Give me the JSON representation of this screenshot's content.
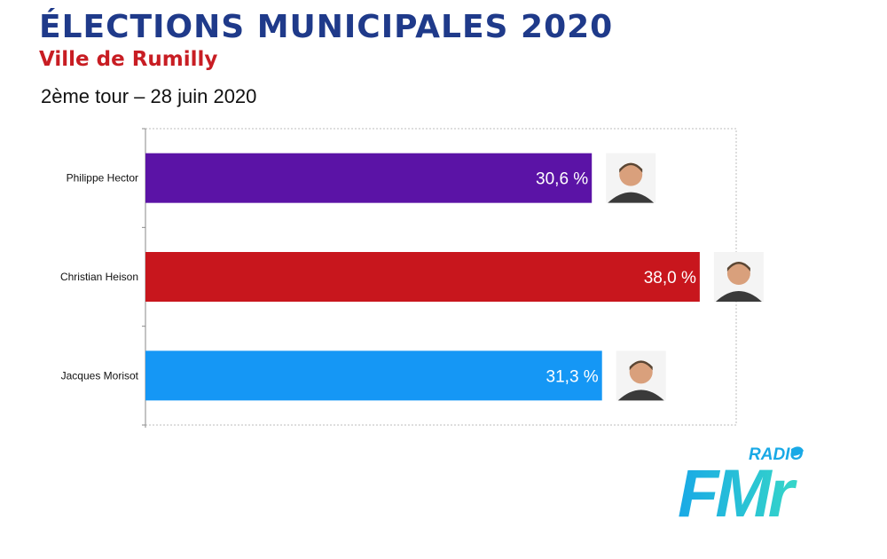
{
  "header": {
    "title": "ÉLECTIONS MUNICIPALES 2020",
    "subtitle": "Ville de Rumilly",
    "round": "2ème tour – 28 juin 2020"
  },
  "chart_data": {
    "type": "bar",
    "orientation": "horizontal",
    "categories": [
      "Philippe Hector",
      "Christian Heison",
      "Jacques Morisot"
    ],
    "values": [
      30.6,
      38.0,
      31.3
    ],
    "value_labels": [
      "30,6 %",
      "38,0 %",
      "31,3 %"
    ],
    "colors": [
      "#5b13a6",
      "#c8161d",
      "#1597f5"
    ],
    "title": "",
    "xlabel": "",
    "ylabel": "",
    "xlim": [
      0,
      40.5
    ],
    "grid": false,
    "legend": "none",
    "avatar_icons": [
      "candidate-photo-icon",
      "candidate-photo-icon",
      "candidate-photo-icon"
    ]
  },
  "logo": {
    "top_text": "RADIO",
    "main_text": "FMr",
    "colors": [
      "#19a9e6",
      "#36d6c8"
    ]
  }
}
